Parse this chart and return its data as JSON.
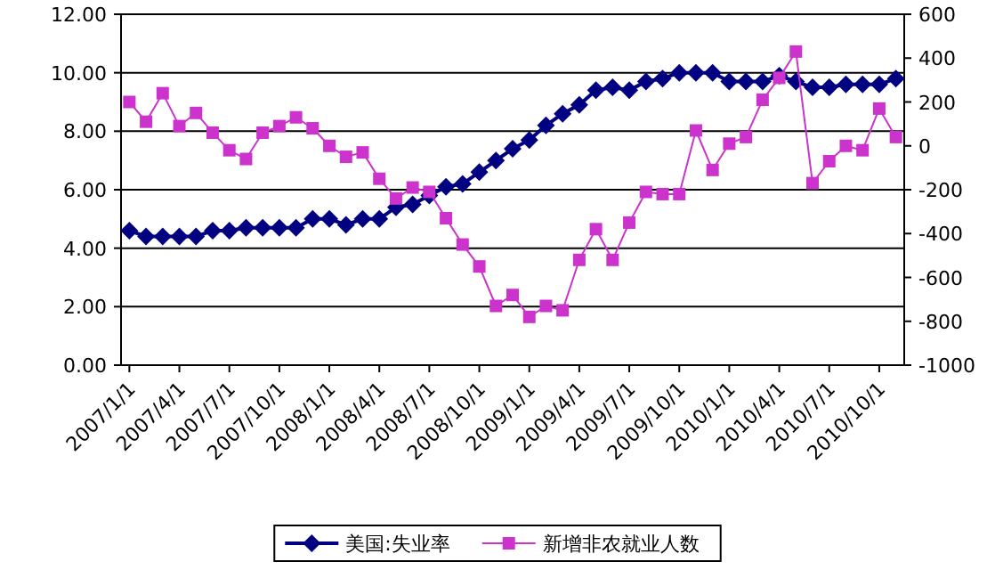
{
  "chart_data": {
    "type": "line",
    "categories": [
      "2007/1/1",
      null,
      null,
      "2007/4/1",
      null,
      null,
      "2007/7/1",
      null,
      null,
      "2007/10/1",
      null,
      null,
      "2008/1/1",
      null,
      null,
      "2008/4/1",
      null,
      null,
      "2008/7/1",
      null,
      null,
      "2008/10/1",
      null,
      null,
      "2009/1/1",
      null,
      null,
      "2009/4/1",
      null,
      null,
      "2009/7/1",
      null,
      null,
      "2009/10/1",
      null,
      null,
      "2010/1/1",
      null,
      null,
      "2010/4/1",
      null,
      null,
      "2010/7/1",
      null,
      null,
      "2010/10/1",
      null
    ],
    "series": [
      {
        "name": "美国:失业率",
        "color": "#000080",
        "marker": "diamond",
        "values": [
          4.6,
          4.4,
          4.4,
          4.4,
          4.4,
          4.6,
          4.6,
          4.7,
          4.7,
          4.7,
          4.7,
          5.0,
          5.0,
          4.8,
          5.0,
          5.0,
          5.4,
          5.5,
          5.8,
          6.1,
          6.2,
          6.6,
          7.0,
          7.4,
          7.7,
          8.2,
          8.6,
          8.9,
          9.4,
          9.5,
          9.4,
          9.7,
          9.8,
          10.0,
          10.0,
          10.0,
          9.7,
          9.7,
          9.7,
          9.9,
          9.7,
          9.5,
          9.5,
          9.6,
          9.6,
          9.6,
          9.8
        ]
      },
      {
        "name": "新增非农就业人数",
        "color": "#cc33cc",
        "marker": "square",
        "axis": "y2",
        "values": [
          200,
          110,
          240,
          90,
          150,
          60,
          -20,
          -60,
          60,
          90,
          130,
          80,
          0,
          -50,
          -30,
          -150,
          -240,
          -190,
          -210,
          -330,
          -450,
          -550,
          -730,
          -680,
          -780,
          -730,
          -750,
          -520,
          -380,
          -520,
          -350,
          -210,
          -220,
          -220,
          70,
          -110,
          10,
          40,
          210,
          310,
          430,
          -170,
          -70,
          0,
          -20,
          170,
          40
        ]
      }
    ],
    "ylim": [
      0,
      12
    ],
    "yticks": [
      {
        "value": 0,
        "label": "0.00"
      },
      {
        "value": 2,
        "label": "2.00"
      },
      {
        "value": 4,
        "label": "4.00"
      },
      {
        "value": 6,
        "label": "6.00"
      },
      {
        "value": 8,
        "label": "8.00"
      },
      {
        "value": 10,
        "label": "10.00"
      },
      {
        "value": 12,
        "label": "12.00"
      }
    ],
    "y2lim": [
      -1000,
      600
    ],
    "y2ticks": [
      -1000,
      -800,
      -600,
      -400,
      -200,
      0,
      200,
      400,
      600
    ],
    "grid": "y",
    "legend": "bottom",
    "line_style": "solid"
  }
}
